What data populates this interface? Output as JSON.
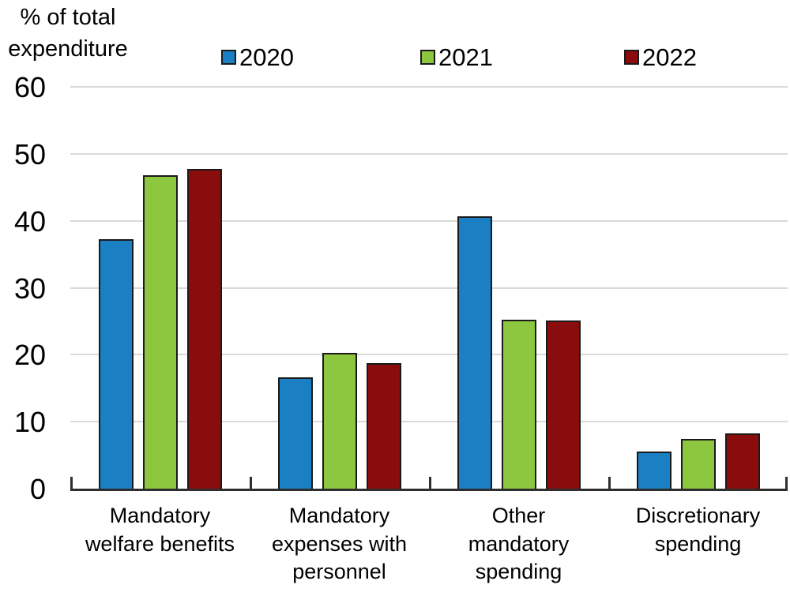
{
  "chart_data": {
    "type": "bar",
    "title": "",
    "ylabel": "% of total expenditure",
    "ylabel_display": "% of total\nexpenditure",
    "xlabel": "",
    "categories": [
      "Mandatory welfare benefits",
      "Mandatory expenses with personnel",
      "Other mandatory spending",
      "Discretionary spending"
    ],
    "category_labels_display": [
      "Mandatory\nwelfare benefits",
      "Mandatory\nexpenses with\npersonnel",
      "Other\nmandatory\nspending",
      "Discretionary\nspending"
    ],
    "series": [
      {
        "name": "2020",
        "color": "#1b7fc3",
        "values": [
          37.2,
          16.6,
          40.7,
          5.5
        ]
      },
      {
        "name": "2021",
        "color": "#8dc63f",
        "values": [
          46.8,
          20.3,
          25.2,
          7.4
        ]
      },
      {
        "name": "2022",
        "color": "#8b0c0c",
        "values": [
          47.8,
          18.8,
          25.1,
          8.3
        ]
      }
    ],
    "ylim": [
      0,
      60
    ],
    "yticks": [
      0,
      10,
      20,
      30,
      40,
      50,
      60
    ],
    "grid": true,
    "legend_position": "top",
    "colors": {
      "grid": "#d9d9d9",
      "axis": "#2e2e2e",
      "bar_border": "#1a1a1a",
      "text": "#000000",
      "background": "#ffffff"
    }
  }
}
